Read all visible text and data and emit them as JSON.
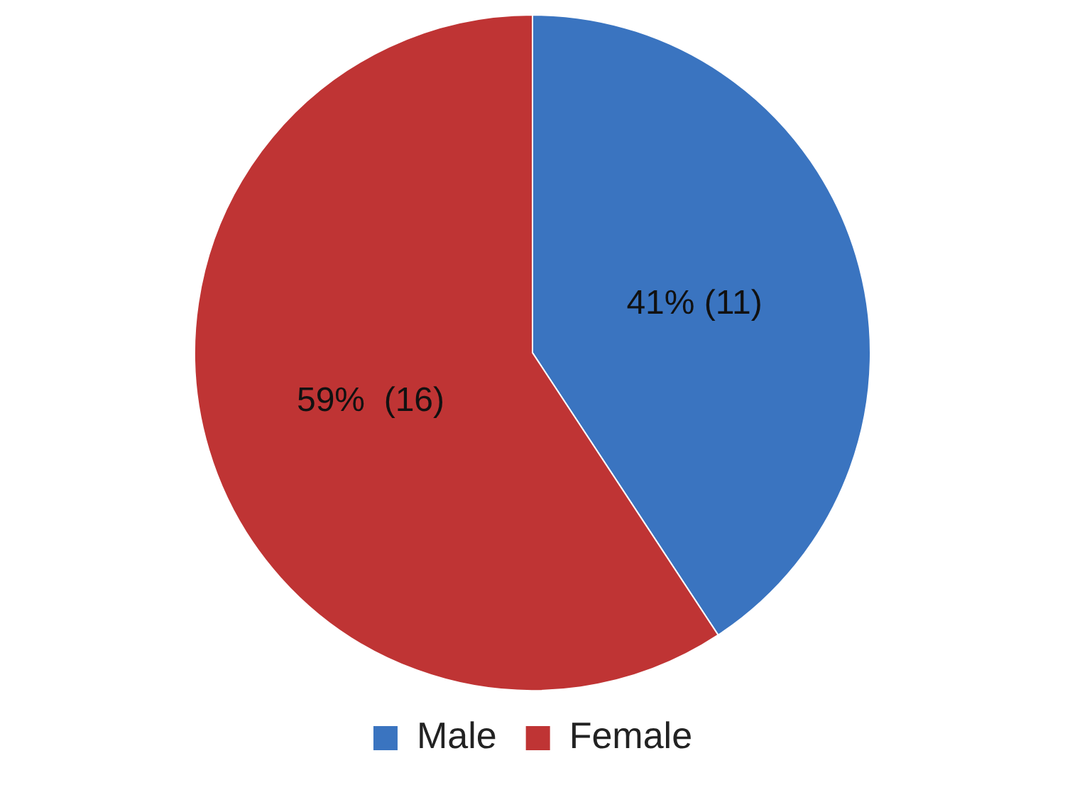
{
  "chart_data": {
    "type": "pie",
    "categories": [
      "Male",
      "Female"
    ],
    "values": [
      11,
      16
    ],
    "colors": [
      "#3a74c0",
      "#bf3434"
    ],
    "value_labels": [
      "41% (11)",
      "59%  (16)"
    ],
    "legend": "bottom"
  }
}
